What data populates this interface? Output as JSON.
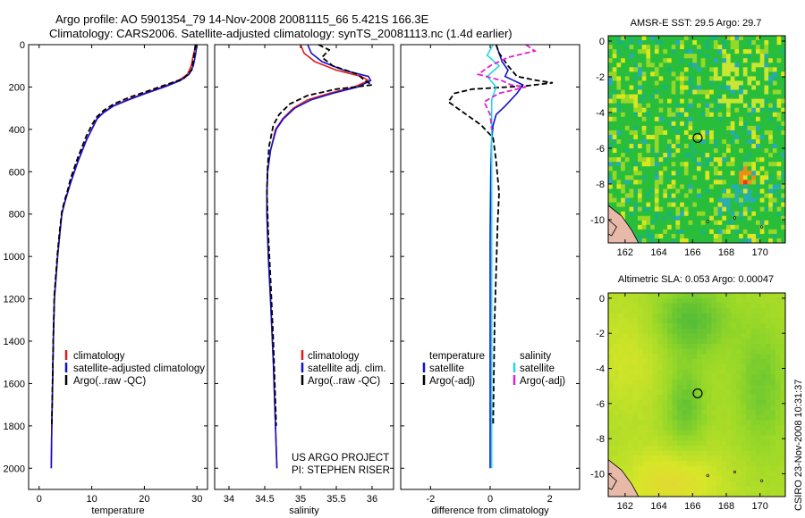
{
  "header": {
    "line1": "Argo profile: AO 5901354_79 14-Nov-2008 20081115_66 5.421S 166.3E",
    "line2": "Climatology: CARS2006. Satellite-adjusted climatology: synTS_20081113.nc (1.4d earlier)"
  },
  "side_label": "CSIRO 23-Nov-2008 10:31:37",
  "colors": {
    "climatology": "#e41a1c",
    "satellite": "#1010d0",
    "argo": "#000000",
    "sal_satellite": "#22d8e8",
    "sal_argo": "#e020d0",
    "land": "#e6b9a8"
  },
  "chart_data": [
    {
      "type": "line",
      "id": "temperature",
      "xlabel": "temperature",
      "xlim": [
        -2,
        32
      ],
      "ylim": [
        0,
        2100
      ],
      "yreverse": true,
      "xticks": [
        0,
        10,
        20,
        30
      ],
      "xticklabels": [
        "0",
        "10",
        "20",
        "30"
      ],
      "yticks": [
        0,
        200,
        400,
        600,
        800,
        1000,
        1200,
        1400,
        1600,
        1800,
        2000
      ],
      "yticklabels": [
        "0",
        "200",
        "400",
        "600",
        "800",
        "1000",
        "1200",
        "1400",
        "1600",
        "1800",
        "2000"
      ],
      "legend": [
        "climatology",
        "satellite-adjusted climatology",
        "Argo(..raw -QC)"
      ],
      "legend_colors": [
        "#e41a1c",
        "#1010d0",
        "#000000"
      ],
      "series": [
        {
          "name": "climatology",
          "color": "#e41a1c",
          "dash": false,
          "x": [
            29.8,
            29.6,
            29.3,
            28.9,
            28.2,
            26.5,
            23.5,
            20.0,
            16.8,
            14.0,
            12.2,
            11.0,
            10.0,
            9.0,
            8.2,
            7.4,
            6.7,
            6.0,
            5.4,
            4.8,
            4.3,
            3.9,
            3.5,
            3.2,
            2.9,
            2.7,
            2.55,
            2.4,
            2.3
          ],
          "y": [
            0,
            20,
            50,
            100,
            140,
            170,
            200,
            230,
            260,
            290,
            320,
            350,
            400,
            450,
            500,
            550,
            600,
            650,
            700,
            750,
            800,
            900,
            1000,
            1100,
            1200,
            1400,
            1600,
            1800,
            2000
          ]
        },
        {
          "name": "satellite-adjusted climatology",
          "color": "#1010d0",
          "dash": false,
          "x": [
            30.0,
            29.9,
            29.7,
            29.3,
            28.5,
            26.8,
            23.8,
            20.3,
            17.0,
            14.1,
            12.3,
            11.0,
            10.0,
            9.0,
            8.2,
            7.4,
            6.7,
            6.0,
            5.4,
            4.8,
            4.3,
            3.9,
            3.5,
            3.2,
            2.9,
            2.7,
            2.55,
            2.4,
            2.3
          ],
          "y": [
            0,
            20,
            50,
            100,
            140,
            170,
            200,
            230,
            260,
            290,
            320,
            350,
            400,
            450,
            500,
            550,
            600,
            650,
            700,
            750,
            800,
            900,
            1000,
            1100,
            1200,
            1400,
            1600,
            1800,
            2000
          ]
        },
        {
          "name": "Argo(..raw -QC)",
          "color": "#000000",
          "dash": true,
          "x": [
            29.7,
            29.6,
            29.4,
            29.0,
            27.5,
            24.0,
            20.5,
            17.0,
            14.2,
            12.3,
            11.0,
            10.0,
            9.0,
            8.2,
            7.4,
            6.7,
            6.0,
            5.4,
            4.8,
            4.3,
            3.9,
            3.5,
            3.2,
            2.9,
            2.7,
            2.55,
            2.4
          ],
          "y": [
            0,
            20,
            60,
            120,
            160,
            190,
            220,
            250,
            280,
            310,
            340,
            380,
            430,
            480,
            530,
            580,
            630,
            690,
            740,
            790,
            880,
            980,
            1080,
            1180,
            1380,
            1580,
            1800
          ]
        }
      ]
    },
    {
      "type": "line",
      "id": "salinity",
      "xlabel": "salinity",
      "xlim": [
        33.8,
        36.3
      ],
      "ylim": [
        0,
        2100
      ],
      "yreverse": true,
      "xticks": [
        34,
        34.5,
        35,
        35.5,
        36
      ],
      "xticklabels": [
        "34",
        "34.5",
        "35",
        "35.5",
        "36"
      ],
      "legend": [
        "climatology",
        "satellite adj. clim.",
        "Argo(..raw -QC)"
      ],
      "legend_colors": [
        "#e41a1c",
        "#1010d0",
        "#000000"
      ],
      "annotation": [
        "US ARGO PROJECT",
        "PI: STEPHEN RISER"
      ],
      "series": [
        {
          "name": "climatology",
          "color": "#e41a1c",
          "dash": false,
          "x": [
            35.0,
            35.05,
            35.2,
            35.5,
            35.85,
            35.95,
            35.75,
            35.4,
            35.1,
            34.9,
            34.75,
            34.65,
            34.58,
            34.54,
            34.53,
            34.53,
            34.55,
            34.58,
            34.62,
            34.65,
            34.67
          ],
          "y": [
            0,
            40,
            80,
            120,
            150,
            170,
            200,
            230,
            260,
            300,
            350,
            400,
            500,
            600,
            700,
            800,
            1000,
            1200,
            1500,
            1800,
            2000
          ]
        },
        {
          "name": "satellite adj. clim.",
          "color": "#1010d0",
          "dash": false,
          "x": [
            35.1,
            35.15,
            35.3,
            35.6,
            35.95,
            35.98,
            35.8,
            35.45,
            35.15,
            34.92,
            34.76,
            34.66,
            34.58,
            34.54,
            34.53,
            34.53,
            34.55,
            34.58,
            34.62,
            34.65,
            34.67
          ],
          "y": [
            0,
            40,
            80,
            120,
            150,
            170,
            200,
            230,
            260,
            300,
            350,
            400,
            500,
            600,
            700,
            800,
            1000,
            1200,
            1500,
            1800,
            2000
          ]
        },
        {
          "name": "Argo(..raw -QC)",
          "color": "#000000",
          "dash": true,
          "x": [
            35.25,
            35.4,
            35.3,
            35.45,
            35.8,
            35.9,
            36.0,
            35.5,
            35.1,
            34.85,
            34.7,
            34.62,
            34.56,
            34.54,
            34.53,
            34.55,
            34.58,
            34.62,
            34.66
          ],
          "y": [
            0,
            25,
            60,
            100,
            140,
            170,
            190,
            210,
            240,
            280,
            330,
            380,
            480,
            580,
            700,
            900,
            1100,
            1400,
            1800
          ]
        }
      ]
    },
    {
      "type": "line",
      "id": "difference",
      "xlabel": "difference from climatology",
      "xlim": [
        -3,
        3
      ],
      "ylim": [
        0,
        2100
      ],
      "yreverse": true,
      "xticks": [
        -2,
        0,
        2
      ],
      "xticklabels": [
        "-2",
        "0",
        "2"
      ],
      "legend_left": [
        "temperature",
        "satellite",
        "Argo(-adj)"
      ],
      "legend_left_colors": [
        "",
        "#1010d0",
        "#000000"
      ],
      "legend_right": [
        "salinity",
        "satellite",
        "Argo(-adj)"
      ],
      "legend_right_colors": [
        "",
        "#22d8e8",
        "#e020d0"
      ],
      "series": [
        {
          "name": "temperature satellite",
          "color": "#1010d0",
          "dash": false,
          "x": [
            0.2,
            0.3,
            0.4,
            0.6,
            0.5,
            0.8,
            1.1,
            0.9,
            0.5,
            0.2,
            0.1,
            0.05,
            0.02,
            0.0,
            0.0,
            0.0
          ],
          "y": [
            0,
            40,
            80,
            120,
            150,
            170,
            190,
            230,
            290,
            330,
            380,
            450,
            600,
            900,
            1500,
            2000
          ]
        },
        {
          "name": "temperature Argo(-adj)",
          "color": "#000000",
          "dash": true,
          "x": [
            0.2,
            0.3,
            0.6,
            0.9,
            1.6,
            2.1,
            1.2,
            -0.6,
            -1.2,
            -1.4,
            -0.9,
            -0.3,
            0.1,
            0.2,
            0.3,
            0.25,
            0.15,
            0.1
          ],
          "y": [
            0,
            40,
            100,
            150,
            170,
            180,
            195,
            210,
            230,
            270,
            320,
            380,
            440,
            550,
            700,
            850,
            1300,
            1800
          ]
        },
        {
          "name": "salinity satellite",
          "color": "#22d8e8",
          "dash": false,
          "x": [
            0.1,
            -0.1,
            0.3,
            -0.1,
            0.2,
            0.05,
            0.05,
            0.05,
            0.05,
            0.05,
            0.05
          ],
          "y": [
            0,
            50,
            100,
            150,
            200,
            260,
            350,
            500,
            1000,
            1500,
            2000
          ]
        },
        {
          "name": "salinity Argo(-adj)",
          "color": "#e020d0",
          "dash": true,
          "x": [
            1.2,
            1.5,
            0.6,
            0.0,
            -0.4,
            0.4,
            0.7,
            1.2,
            0.3,
            -0.2,
            0.0,
            0.05
          ],
          "y": [
            0,
            30,
            60,
            100,
            140,
            170,
            190,
            200,
            230,
            270,
            330,
            400
          ]
        }
      ]
    },
    {
      "type": "heatmap",
      "id": "sst",
      "title": "AMSR-E SST: 29.5 Argo: 29.7",
      "xlim": [
        161,
        171.5
      ],
      "ylim": [
        -11.3,
        0.3
      ],
      "xticks": [
        162,
        164,
        166,
        168,
        170
      ],
      "xticklabels": [
        "162",
        "164",
        "166",
        "168",
        "170"
      ],
      "yticks": [
        0,
        -2,
        -4,
        -6,
        -8,
        -10
      ],
      "yticklabels": [
        "0",
        "-2",
        "-4",
        "-6",
        "-8",
        "-10"
      ],
      "marker": {
        "lon": 166.3,
        "lat": -5.421
      },
      "field": "sst"
    },
    {
      "type": "heatmap",
      "id": "sla",
      "title": "Altimetric SLA: 0.053 Argo: 0.00047",
      "xlim": [
        161,
        171.5
      ],
      "ylim": [
        -11.3,
        0.3
      ],
      "xticks": [
        162,
        164,
        166,
        168,
        170
      ],
      "xticklabels": [
        "162",
        "164",
        "166",
        "168",
        "170"
      ],
      "yticks": [
        0,
        -2,
        -4,
        -6,
        -8,
        -10
      ],
      "yticklabels": [
        "0",
        "-2",
        "-4",
        "-6",
        "-8",
        "-10"
      ],
      "marker": {
        "lon": 166.3,
        "lat": -5.421
      },
      "field": "sla"
    }
  ]
}
